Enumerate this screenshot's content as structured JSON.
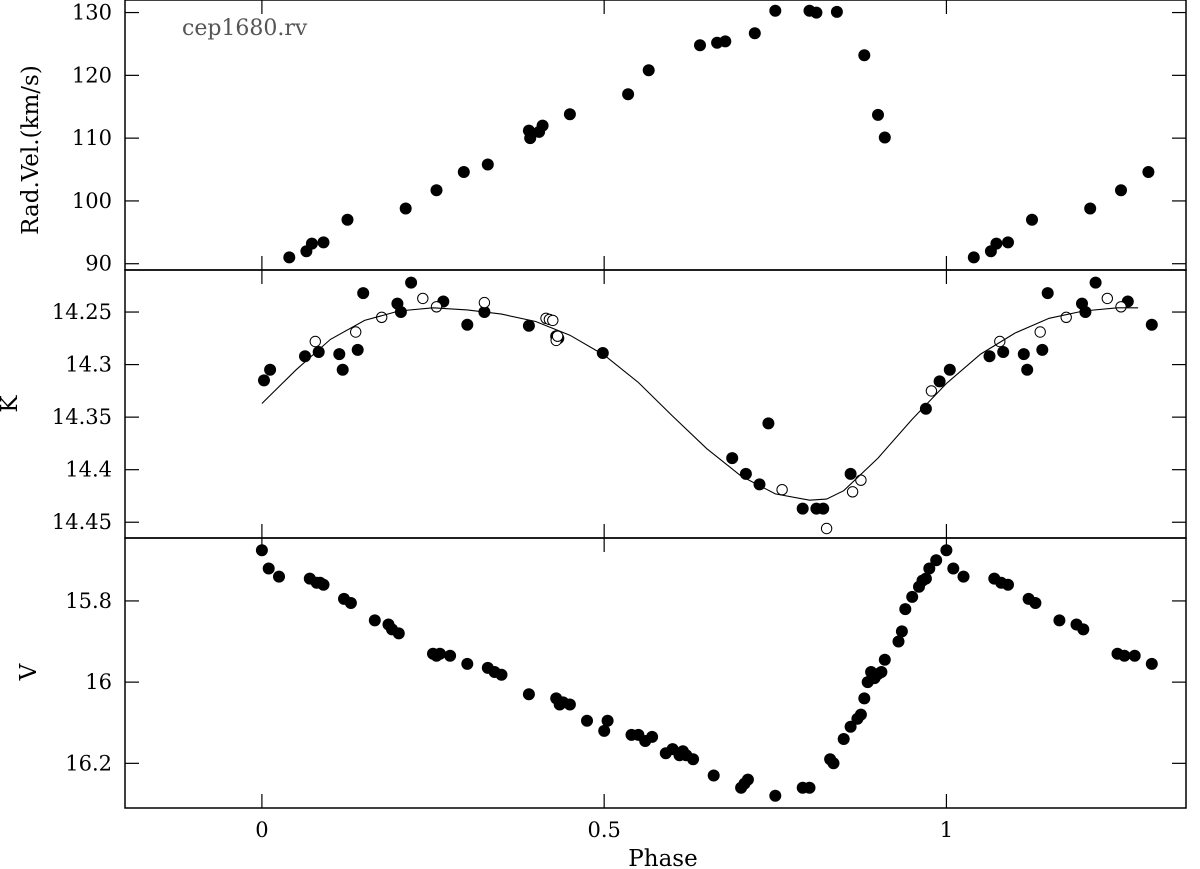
{
  "chart_data": [
    {
      "type": "scatter",
      "panel": "top",
      "annotation": "cep1680.rv",
      "ylabel": "Rad.Vel.(km/s)",
      "xlim": [
        -0.2,
        1.35
      ],
      "ylim": [
        89,
        132
      ],
      "yticks": [
        "90",
        "100",
        "110",
        "120",
        "130"
      ],
      "series": [
        {
          "marker": "filled-circle",
          "x": [
            0.04,
            0.065,
            0.073,
            0.09,
            0.125,
            0.21,
            0.255,
            0.295,
            0.33,
            0.39,
            0.392,
            0.405,
            0.41,
            0.45,
            0.535,
            0.565,
            0.64,
            0.665,
            0.677,
            0.72,
            0.75,
            0.8,
            0.81,
            0.84,
            0.88,
            0.9,
            0.91,
            1.04,
            1.065,
            1.073,
            1.09,
            1.125,
            1.21,
            1.255,
            1.295
          ],
          "y": [
            91,
            92,
            93.2,
            93.4,
            97,
            98.8,
            101.7,
            104.6,
            105.8,
            111.2,
            110,
            111,
            112,
            113.8,
            117,
            120.8,
            124.8,
            125.2,
            125.4,
            126.7,
            130.3,
            130.3,
            130,
            130.1,
            123.2,
            113.7,
            110.1,
            91,
            92,
            93.2,
            93.4,
            97,
            98.8,
            101.7,
            104.6
          ]
        }
      ]
    },
    {
      "type": "scatter",
      "panel": "middle",
      "ylabel": "K",
      "xlim": [
        -0.2,
        1.35
      ],
      "ylim": [
        14.465,
        14.21
      ],
      "yticks": [
        "14.25",
        "14.3",
        "14.35",
        "14.4",
        "14.45"
      ],
      "series": [
        {
          "marker": "filled-circle",
          "x": [
            0.003,
            0.012,
            0.063,
            0.083,
            0.113,
            0.118,
            0.14,
            0.148,
            0.198,
            0.203,
            0.218,
            0.265,
            0.3,
            0.325,
            0.39,
            0.43,
            0.433,
            0.498,
            0.687,
            0.707,
            0.727,
            0.74,
            0.79,
            0.81,
            0.82,
            0.86,
            0.97,
            0.99,
            1.005,
            1.063,
            1.083,
            1.113,
            1.118,
            1.14,
            1.148,
            1.198,
            1.203,
            1.218,
            1.265,
            1.3
          ],
          "y": [
            14.315,
            14.305,
            14.292,
            14.288,
            14.29,
            14.305,
            14.286,
            14.232,
            14.242,
            14.25,
            14.222,
            14.24,
            14.262,
            14.25,
            14.263,
            14.273,
            14.275,
            14.289,
            14.389,
            14.404,
            14.414,
            14.356,
            14.437,
            14.437,
            14.437,
            14.404,
            14.342,
            14.316,
            14.305,
            14.292,
            14.288,
            14.29,
            14.305,
            14.286,
            14.232,
            14.242,
            14.25,
            14.222,
            14.24,
            14.262
          ]
        },
        {
          "marker": "open-circle",
          "x": [
            0.078,
            0.137,
            0.175,
            0.235,
            0.255,
            0.325,
            0.415,
            0.42,
            0.425,
            0.43,
            0.432,
            0.76,
            0.825,
            0.863,
            0.875,
            0.978,
            1.078,
            1.137,
            1.175,
            1.235,
            1.255
          ],
          "y": [
            14.278,
            14.269,
            14.255,
            14.237,
            14.245,
            14.241,
            14.256,
            14.257,
            14.258,
            14.277,
            14.273,
            14.419,
            14.456,
            14.421,
            14.41,
            14.325,
            14.278,
            14.269,
            14.255,
            14.237,
            14.245
          ]
        },
        {
          "marker": "line",
          "x": [
            0.0,
            0.05,
            0.1,
            0.15,
            0.2,
            0.25,
            0.3,
            0.35,
            0.4,
            0.45,
            0.5,
            0.55,
            0.6,
            0.65,
            0.7,
            0.75,
            0.8,
            0.825,
            0.85,
            0.9,
            0.95,
            1.0,
            1.05,
            1.1,
            1.15,
            1.2,
            1.25,
            1.28
          ],
          "y": [
            14.337,
            14.305,
            14.276,
            14.258,
            14.249,
            14.246,
            14.248,
            14.252,
            14.259,
            14.272,
            14.291,
            14.317,
            14.349,
            14.38,
            14.406,
            14.423,
            14.429,
            14.428,
            14.42,
            14.389,
            14.352,
            14.318,
            14.29,
            14.27,
            14.256,
            14.249,
            14.246,
            14.246
          ]
        }
      ]
    },
    {
      "type": "scatter",
      "panel": "bottom",
      "ylabel": "V",
      "xlabel": "Phase",
      "xlim": [
        -0.2,
        1.35
      ],
      "ylim": [
        16.31,
        15.645
      ],
      "xticks": [
        "0",
        "0.5",
        "1"
      ],
      "yticks": [
        "15.8",
        "16",
        "16.2"
      ],
      "series": [
        {
          "marker": "filled-circle",
          "x": [
            0.0,
            0.01,
            0.025,
            0.07,
            0.08,
            0.085,
            0.09,
            0.12,
            0.13,
            0.165,
            0.185,
            0.19,
            0.2,
            0.25,
            0.255,
            0.26,
            0.275,
            0.3,
            0.33,
            0.34,
            0.35,
            0.39,
            0.43,
            0.435,
            0.44,
            0.45,
            0.475,
            0.5,
            0.505,
            0.54,
            0.55,
            0.56,
            0.57,
            0.59,
            0.6,
            0.61,
            0.615,
            0.62,
            0.63,
            0.66,
            0.7,
            0.705,
            0.71,
            0.75,
            0.79,
            0.8,
            0.83,
            0.835,
            0.85,
            0.86,
            0.87,
            0.875,
            0.88,
            0.885,
            0.89,
            0.895,
            0.9,
            0.905,
            0.91,
            0.93,
            0.935,
            0.94,
            0.95,
            0.96,
            0.965,
            0.97,
            0.975,
            0.985,
            1.0,
            1.01,
            1.025,
            1.07,
            1.08,
            1.09,
            1.12,
            1.13,
            1.165,
            1.19,
            1.2,
            1.25,
            1.26,
            1.275,
            1.3
          ],
          "y": [
            15.675,
            15.72,
            15.74,
            15.745,
            15.755,
            15.755,
            15.76,
            15.795,
            15.805,
            15.848,
            15.858,
            15.87,
            15.88,
            15.93,
            15.935,
            15.93,
            15.935,
            15.955,
            15.965,
            15.975,
            15.982,
            16.03,
            16.04,
            16.055,
            16.05,
            16.055,
            16.095,
            16.12,
            16.095,
            16.13,
            16.13,
            16.145,
            16.135,
            16.175,
            16.165,
            16.18,
            16.17,
            16.18,
            16.19,
            16.23,
            16.26,
            16.25,
            16.24,
            16.28,
            16.26,
            16.26,
            16.19,
            16.2,
            16.14,
            16.11,
            16.09,
            16.08,
            16.04,
            16.0,
            15.975,
            15.99,
            15.98,
            15.975,
            15.945,
            15.9,
            15.875,
            15.82,
            15.79,
            15.765,
            15.75,
            15.745,
            15.72,
            15.7,
            15.675,
            15.72,
            15.74,
            15.745,
            15.755,
            15.76,
            15.795,
            15.805,
            15.848,
            15.858,
            15.87,
            15.93,
            15.935,
            15.935,
            15.955
          ]
        }
      ]
    }
  ]
}
